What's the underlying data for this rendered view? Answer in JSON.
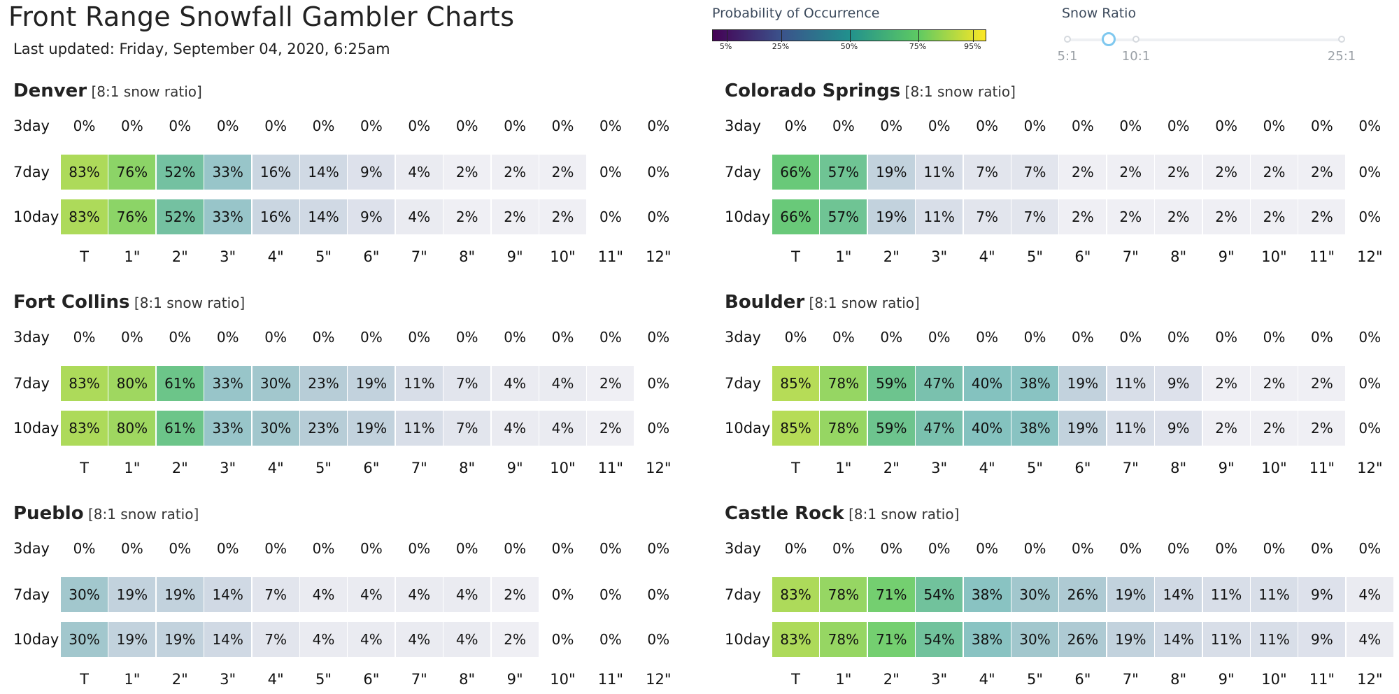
{
  "header": {
    "title": "Front Range Snowfall Gambler Charts",
    "updated": "Last updated: Friday, September 04, 2020, 6:25am"
  },
  "legend": {
    "title": "Probability of Occurrence",
    "ticks": [
      5,
      25,
      50,
      75,
      95
    ],
    "tick_labels": [
      "5%",
      "25%",
      "50%",
      "75%",
      "95%"
    ],
    "colormap": [
      "#440154",
      "#3b528b",
      "#21908d",
      "#5dc963",
      "#fde725"
    ]
  },
  "snow_ratio": {
    "title": "Snow Ratio",
    "stops": [
      5,
      8,
      10,
      25
    ],
    "labels": [
      "5:1",
      "",
      "10:1",
      "25:1"
    ],
    "selected": 8
  },
  "chart_data": [
    {
      "type": "heatmap",
      "city": "Denver",
      "ratio_note": "[8:1 snow ratio]",
      "rows": [
        "3day",
        "7day",
        "10day"
      ],
      "categories": [
        "T",
        "1\"",
        "2\"",
        "3\"",
        "4\"",
        "5\"",
        "6\"",
        "7\"",
        "8\"",
        "9\"",
        "10\"",
        "11\"",
        "12\""
      ],
      "values": [
        [
          0,
          0,
          0,
          0,
          0,
          0,
          0,
          0,
          0,
          0,
          0,
          0,
          0
        ],
        [
          83,
          76,
          52,
          33,
          16,
          14,
          9,
          4,
          2,
          2,
          2,
          0,
          0
        ],
        [
          83,
          76,
          52,
          33,
          16,
          14,
          9,
          4,
          2,
          2,
          2,
          0,
          0
        ]
      ]
    },
    {
      "type": "heatmap",
      "city": "Colorado Springs",
      "ratio_note": "[8:1 snow ratio]",
      "rows": [
        "3day",
        "7day",
        "10day"
      ],
      "categories": [
        "T",
        "1\"",
        "2\"",
        "3\"",
        "4\"",
        "5\"",
        "6\"",
        "7\"",
        "8\"",
        "9\"",
        "10\"",
        "11\"",
        "12\""
      ],
      "values": [
        [
          0,
          0,
          0,
          0,
          0,
          0,
          0,
          0,
          0,
          0,
          0,
          0,
          0
        ],
        [
          66,
          57,
          19,
          11,
          7,
          7,
          2,
          2,
          2,
          2,
          2,
          2,
          0
        ],
        [
          66,
          57,
          19,
          11,
          7,
          7,
          2,
          2,
          2,
          2,
          2,
          2,
          0
        ]
      ]
    },
    {
      "type": "heatmap",
      "city": "Fort Collins",
      "ratio_note": "[8:1 snow ratio]",
      "rows": [
        "3day",
        "7day",
        "10day"
      ],
      "categories": [
        "T",
        "1\"",
        "2\"",
        "3\"",
        "4\"",
        "5\"",
        "6\"",
        "7\"",
        "8\"",
        "9\"",
        "10\"",
        "11\"",
        "12\""
      ],
      "values": [
        [
          0,
          0,
          0,
          0,
          0,
          0,
          0,
          0,
          0,
          0,
          0,
          0,
          0
        ],
        [
          83,
          80,
          61,
          33,
          30,
          23,
          19,
          11,
          7,
          4,
          4,
          2,
          0
        ],
        [
          83,
          80,
          61,
          33,
          30,
          23,
          19,
          11,
          7,
          4,
          4,
          2,
          0
        ]
      ]
    },
    {
      "type": "heatmap",
      "city": "Boulder",
      "ratio_note": "[8:1 snow ratio]",
      "rows": [
        "3day",
        "7day",
        "10day"
      ],
      "categories": [
        "T",
        "1\"",
        "2\"",
        "3\"",
        "4\"",
        "5\"",
        "6\"",
        "7\"",
        "8\"",
        "9\"",
        "10\"",
        "11\"",
        "12\""
      ],
      "values": [
        [
          0,
          0,
          0,
          0,
          0,
          0,
          0,
          0,
          0,
          0,
          0,
          0,
          0
        ],
        [
          85,
          78,
          59,
          47,
          40,
          38,
          19,
          11,
          9,
          2,
          2,
          2,
          0
        ],
        [
          85,
          78,
          59,
          47,
          40,
          38,
          19,
          11,
          9,
          2,
          2,
          2,
          0
        ]
      ]
    },
    {
      "type": "heatmap",
      "city": "Pueblo",
      "ratio_note": "[8:1 snow ratio]",
      "rows": [
        "3day",
        "7day",
        "10day"
      ],
      "categories": [
        "T",
        "1\"",
        "2\"",
        "3\"",
        "4\"",
        "5\"",
        "6\"",
        "7\"",
        "8\"",
        "9\"",
        "10\"",
        "11\"",
        "12\""
      ],
      "values": [
        [
          0,
          0,
          0,
          0,
          0,
          0,
          0,
          0,
          0,
          0,
          0,
          0,
          0
        ],
        [
          30,
          19,
          19,
          14,
          7,
          4,
          4,
          4,
          4,
          2,
          0,
          0,
          0
        ],
        [
          30,
          19,
          19,
          14,
          7,
          4,
          4,
          4,
          4,
          2,
          0,
          0,
          0
        ]
      ]
    },
    {
      "type": "heatmap",
      "city": "Castle Rock",
      "ratio_note": "[8:1 snow ratio]",
      "rows": [
        "3day",
        "7day",
        "10day"
      ],
      "categories": [
        "T",
        "1\"",
        "2\"",
        "3\"",
        "4\"",
        "5\"",
        "6\"",
        "7\"",
        "8\"",
        "9\"",
        "10\"",
        "11\"",
        "12\""
      ],
      "values": [
        [
          0,
          0,
          0,
          0,
          0,
          0,
          0,
          0,
          0,
          0,
          0,
          0,
          0
        ],
        [
          83,
          78,
          71,
          54,
          38,
          30,
          26,
          19,
          14,
          11,
          11,
          9,
          4
        ],
        [
          83,
          78,
          71,
          54,
          38,
          30,
          26,
          19,
          14,
          11,
          11,
          9,
          4
        ]
      ]
    }
  ]
}
